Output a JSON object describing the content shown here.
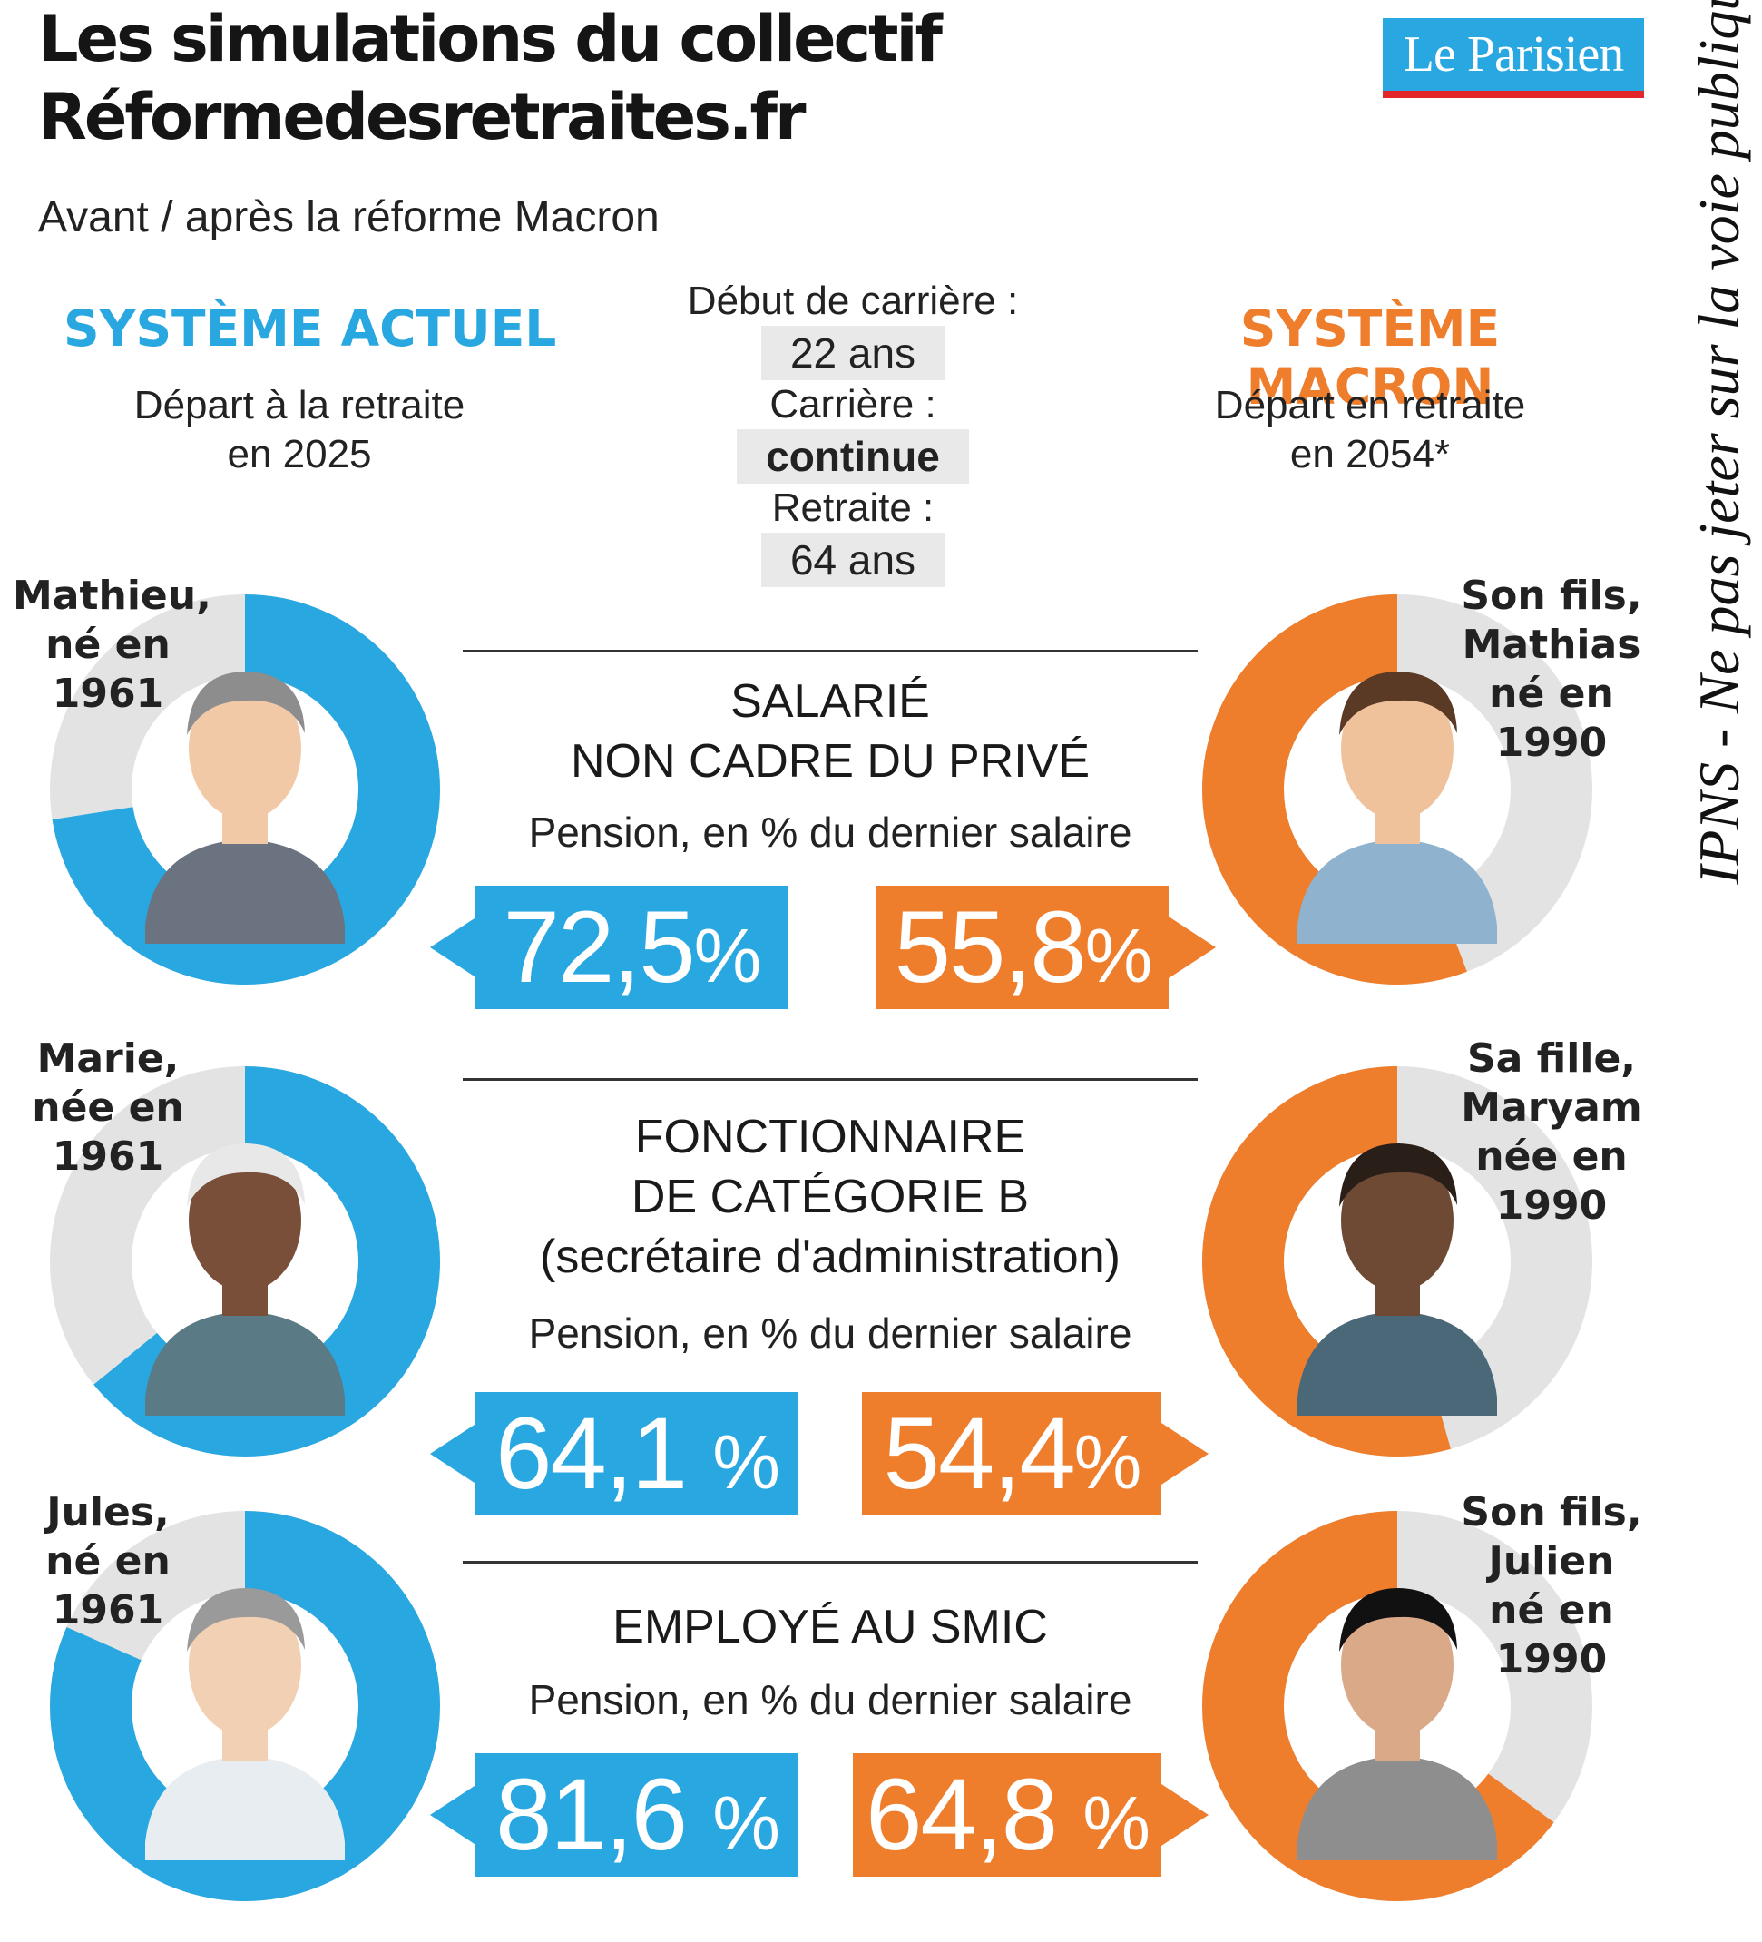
{
  "header": {
    "title_line1": "Les simulations du collectif",
    "title_line2": "Réformedesretraites.fr",
    "subtitle": "Avant / après la réforme Macron",
    "logo": "Le Parisien"
  },
  "systems": {
    "left_label": "SYSTÈME ACTUEL",
    "left_dep1": "Départ à la retraite",
    "left_dep2": "en 2025",
    "right_label": "SYSTÈME MACRON",
    "right_dep1": "Départ en retraite",
    "right_dep2": "en 2054*"
  },
  "assumptions": {
    "start_label": "Début de carrière :",
    "start_value": "22 ans",
    "career_label": "Carrière :",
    "career_value": "continue",
    "retire_label": "Retraite :",
    "retire_value": "64 ans"
  },
  "people": {
    "mathieu": [
      "Mathieu,",
      "né en",
      "1961"
    ],
    "mathias": [
      "Son fils,",
      "Mathias",
      "né en",
      "1990"
    ],
    "marie": [
      "Marie,",
      "née en",
      "1961"
    ],
    "maryam": [
      "Sa fille,",
      "Maryam",
      "née en",
      "1990"
    ],
    "jules": [
      "Jules,",
      "né en",
      "1961"
    ],
    "julien": [
      "Son fils,",
      "Julien",
      "né en",
      "1990"
    ]
  },
  "categories": [
    {
      "line1": "SALARIÉ",
      "line2": "NON CADRE DU PRIVÉ",
      "line3": "",
      "sub": "Pension, en % du dernier salaire",
      "left_num": "72,5",
      "right_num": "55,8",
      "left_pct": "%",
      "right_pct": "%"
    },
    {
      "line1": "FONCTIONNAIRE",
      "line2": "DE CATÉGORIE B",
      "line3": "(secrétaire d'administration)",
      "sub": "Pension, en % du dernier salaire",
      "left_num": "64,1 ",
      "right_num": "54,4",
      "left_pct": "%",
      "right_pct": "%"
    },
    {
      "line1": "EMPLOYÉ AU SMIC",
      "line2": "",
      "line3": "",
      "sub": "Pension, en % du dernier salaire",
      "left_num": "81,6 ",
      "right_num": "64,8 ",
      "left_pct": "%",
      "right_pct": "%"
    }
  ],
  "watermark": "IPNS - Ne pas jeter sur la voie publique",
  "colors": {
    "actuel": "#29a7e1",
    "macron": "#ee7d2c",
    "track": "#e3e3e3"
  },
  "chart_data": {
    "type": "pie",
    "title": "Les simulations du collectif Réformedesretraites.fr",
    "subtitle": "Avant / après la réforme Macron",
    "categories": [
      "SALARIÉ NON CADRE DU PRIVÉ",
      "FONCTIONNAIRE DE CATÉGORIE B (secrétaire d'administration)",
      "EMPLOYÉ AU SMIC"
    ],
    "unit": "Pension, en % du dernier salaire",
    "series": [
      {
        "name": "SYSTÈME ACTUEL",
        "values": [
          72.5,
          64.1,
          81.6
        ]
      },
      {
        "name": "SYSTÈME MACRON",
        "values": [
          55.8,
          54.4,
          64.8
        ]
      }
    ]
  }
}
